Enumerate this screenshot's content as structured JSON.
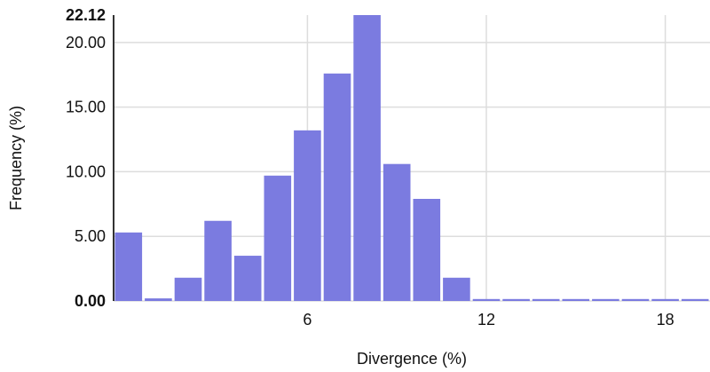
{
  "chart_data": {
    "type": "bar",
    "xlabel": "Divergence (%)",
    "ylabel": "Frequency (%)",
    "x_ticks": [
      6,
      12,
      18
    ],
    "y_ticks": [
      "0.00",
      "5.00",
      "10.00",
      "15.00",
      "20.00"
    ],
    "y_max_label": "22.12",
    "ylim": [
      0,
      22.12
    ],
    "xlim": [
      -0.5,
      19.5
    ],
    "bin_width": 1,
    "bins": [
      0,
      1,
      2,
      3,
      4,
      5,
      6,
      7,
      8,
      9,
      10,
      11,
      12,
      13,
      14,
      15,
      16,
      17,
      18,
      19
    ],
    "values": [
      5.3,
      0.2,
      1.8,
      6.2,
      3.5,
      9.7,
      13.2,
      17.6,
      22.12,
      10.6,
      7.9,
      1.8,
      0.15,
      0.15,
      0.15,
      0.15,
      0.15,
      0.15,
      0.15,
      0.15
    ],
    "grid": true,
    "bar_color": "#7b7be0"
  }
}
